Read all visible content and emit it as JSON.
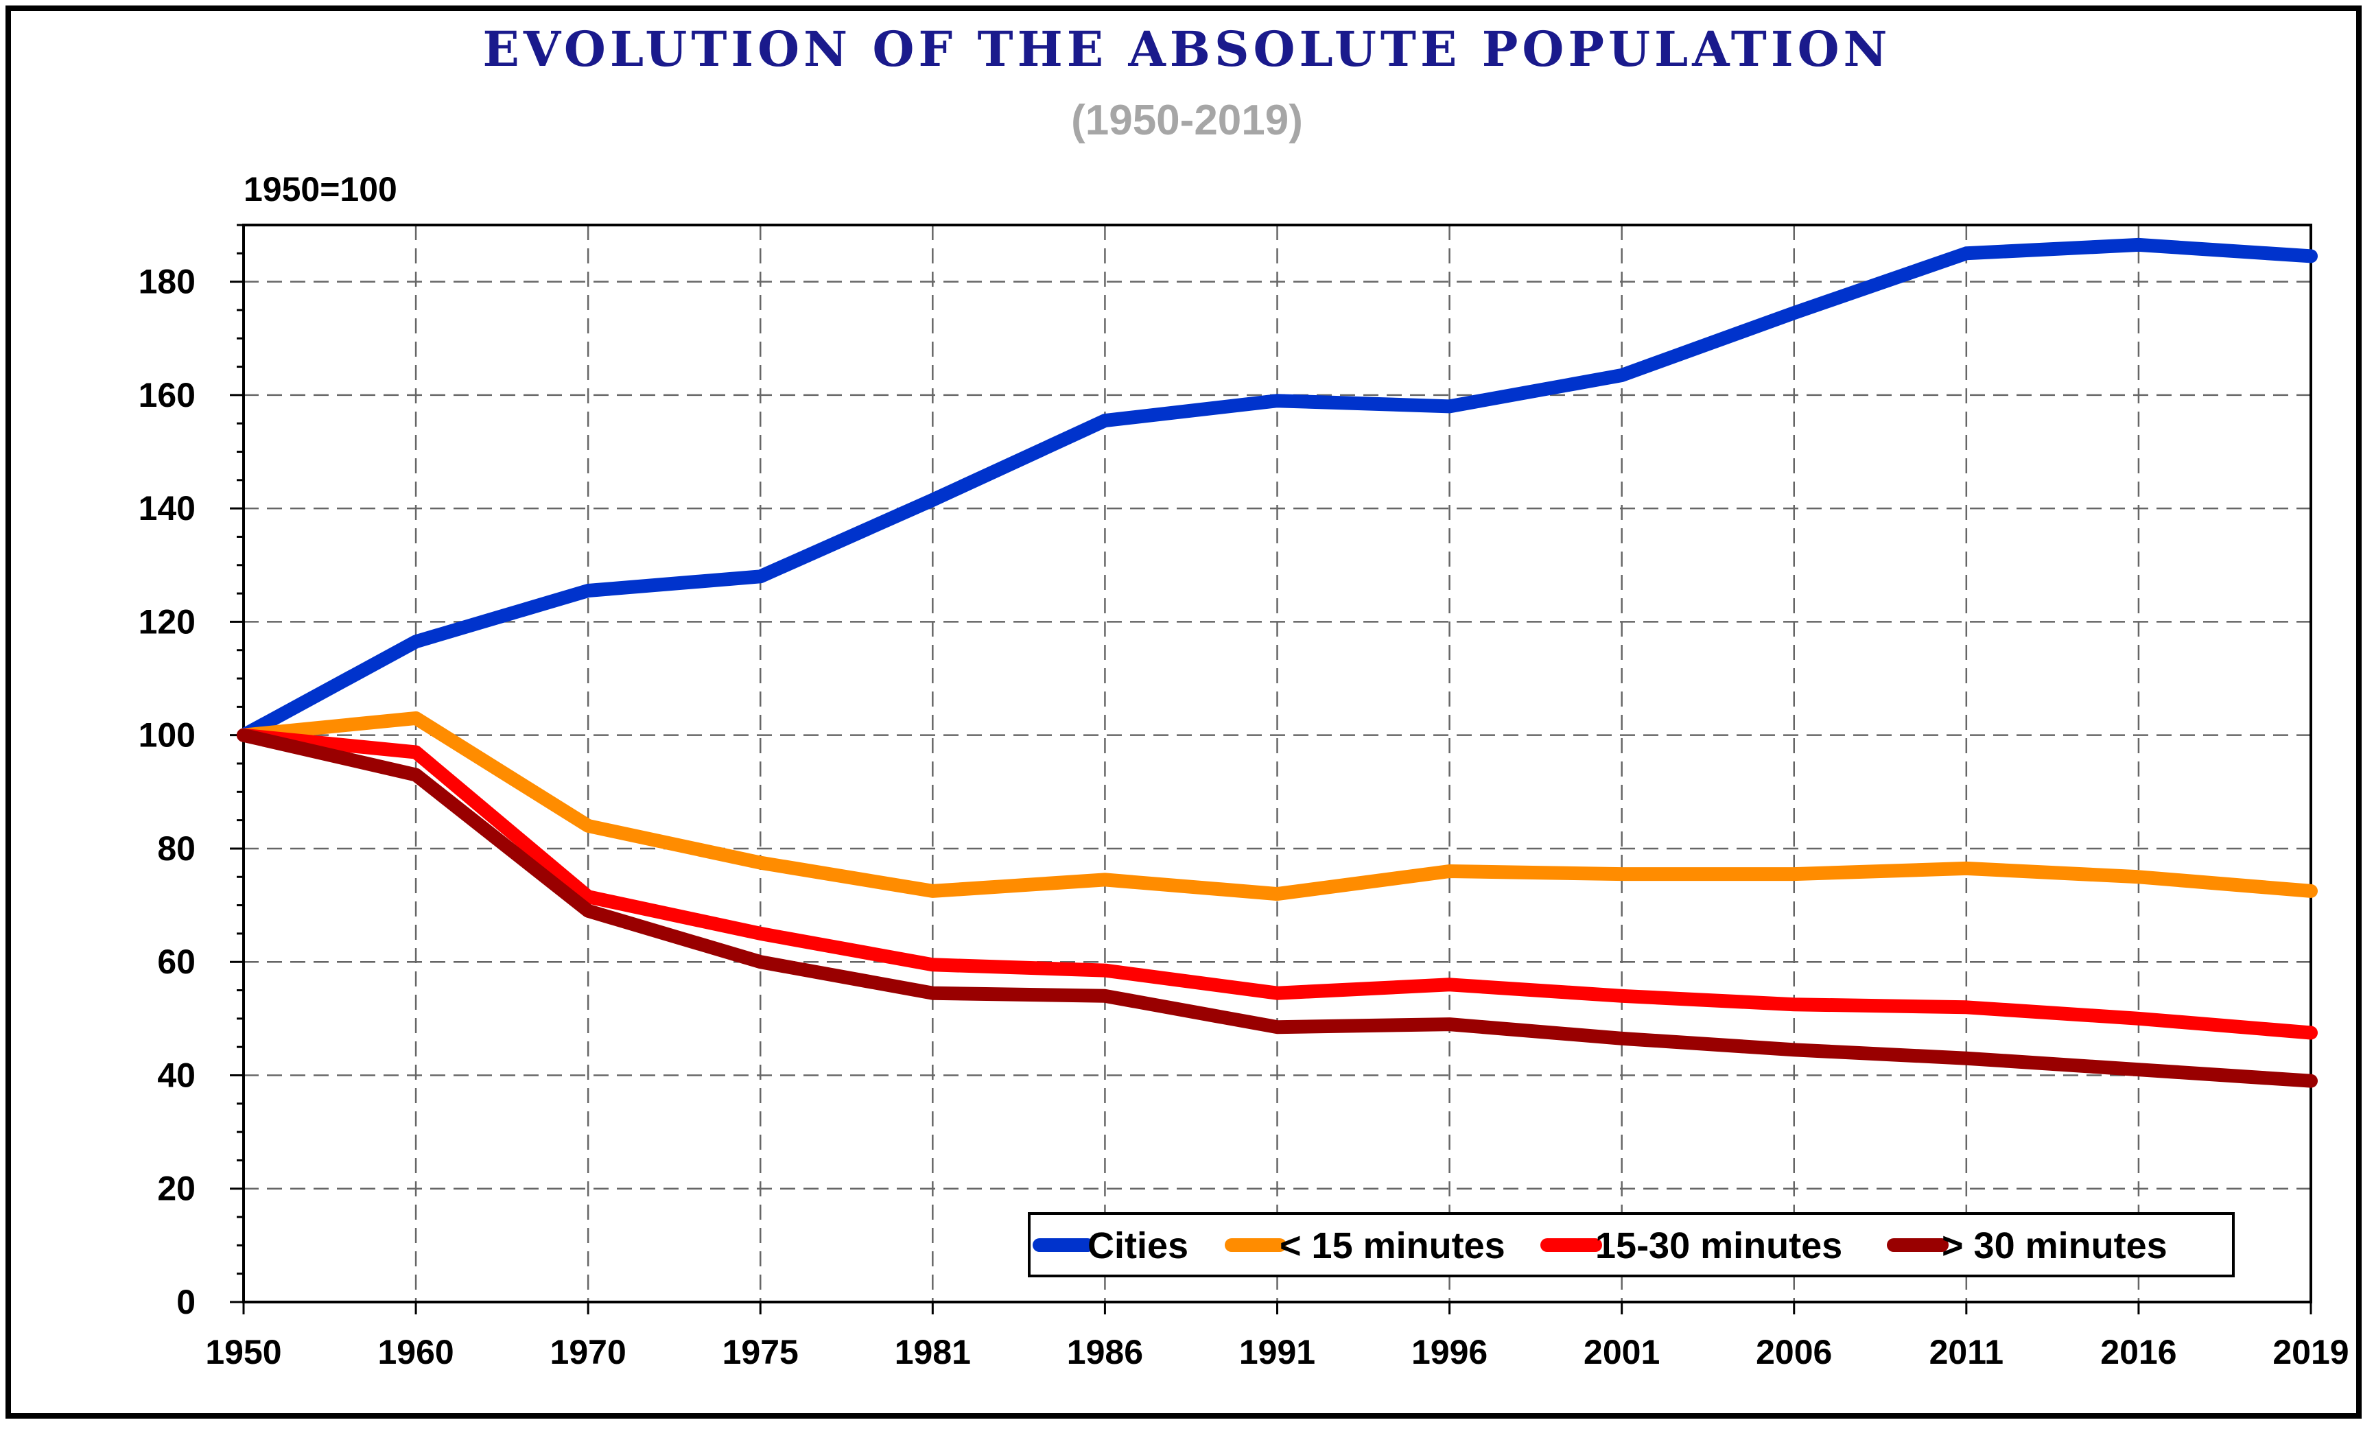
{
  "chart_data": {
    "type": "line",
    "title": "EVOLUTION OF THE ABSOLUTE POPULATION",
    "subtitle": "(1950-2019)",
    "base_label": "1950=100",
    "categories": [
      "1950",
      "1960",
      "1970",
      "1975",
      "1981",
      "1986",
      "1991",
      "1996",
      "2001",
      "2006",
      "2011",
      "2016",
      "2019"
    ],
    "ylim": [
      0,
      190
    ],
    "yticks": [
      0,
      20,
      40,
      60,
      80,
      100,
      120,
      140,
      160,
      180
    ],
    "grid": true,
    "legend_position": "bottom-right",
    "series": [
      {
        "name": "Cities",
        "color": "#0033CC",
        "values": [
          100,
          116.5,
          125.5,
          128,
          141.5,
          155.5,
          159,
          158,
          163.5,
          174.5,
          185,
          186.5,
          184.5
        ]
      },
      {
        "name": "< 15 minutes",
        "color": "#FF8C00",
        "values": [
          100,
          103,
          84,
          77.5,
          72.5,
          74.5,
          72,
          76,
          75.5,
          75.5,
          76.5,
          75,
          72.5
        ]
      },
      {
        "name": "15-30 minutes",
        "color": "#FF0000",
        "values": [
          100,
          97,
          71.5,
          65,
          59.5,
          58.5,
          54.5,
          56,
          54,
          52.5,
          52,
          50,
          47.5
        ]
      },
      {
        "name": "> 30 minutes",
        "color": "#990000",
        "values": [
          100,
          93,
          69,
          60,
          54.5,
          54,
          48.5,
          49,
          46.5,
          44.5,
          43,
          41,
          39
        ]
      }
    ],
    "colors": {
      "title": "#1A1A8C",
      "subtitle": "#A6A6A6",
      "axis": "#000000",
      "grid": "#666666"
    }
  }
}
